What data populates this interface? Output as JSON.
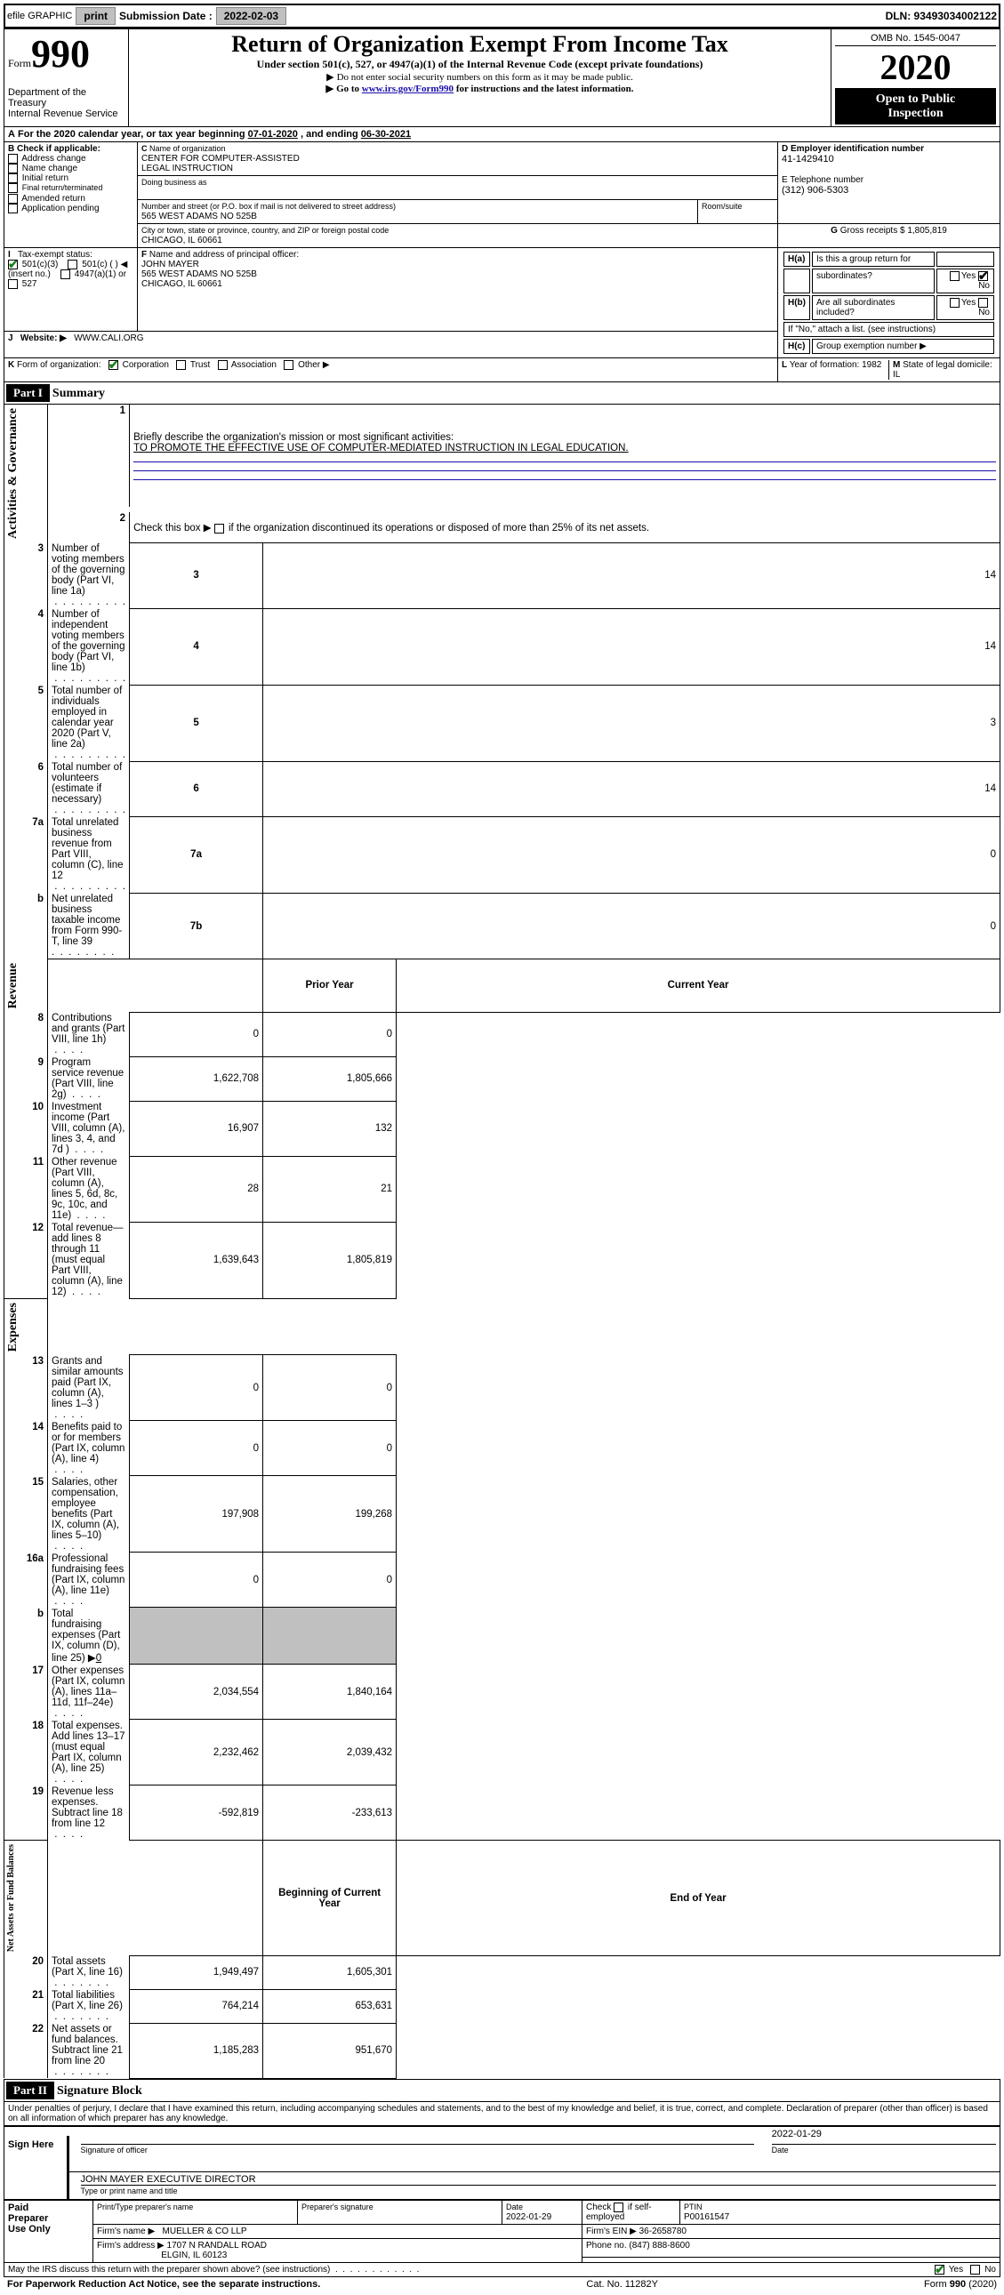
{
  "topbar": {
    "efile": "efile GRAPHIC",
    "print": "print",
    "sub_label": "Submission Date :",
    "sub_date": "2022-02-03",
    "dln": "DLN: 93493034002122"
  },
  "header": {
    "form_word": "Form",
    "form_no": "990",
    "title": "Return of Organization Exempt From Income Tax",
    "subtitle": "Under section 501(c), 527, or 4947(a)(1) of the Internal Revenue Code (except private foundations)",
    "note1": "Do not enter social security numbers on this form as it may be made public.",
    "note2a": "Go to ",
    "note2_link": "www.irs.gov/Form990",
    "note2b": " for instructions and the latest information.",
    "omb": "OMB No. 1545-0047",
    "year": "2020",
    "public1": "Open to Public",
    "public2": "Inspection",
    "dept1": "Department of the Treasury",
    "dept2": "Internal Revenue Service"
  },
  "sectA": {
    "text_a": "A",
    "text": "For the 2020 calendar year, or tax year beginning ",
    "begin": "07-01-2020",
    "mid": " , and ending ",
    "end": "06-30-2021"
  },
  "boxB": {
    "label": "B",
    "check_if": "Check if applicable:",
    "items": [
      "Address change",
      "Name change",
      "Initial return",
      "Final return/terminated",
      "Amended return",
      "Application pending"
    ],
    "pending": "Application"
  },
  "boxC": {
    "label": "C",
    "name_label": "Name of organization",
    "name1": "CENTER FOR COMPUTER-ASSISTED",
    "name2": "LEGAL INSTRUCTION",
    "dba_label": "Doing business as",
    "dba": "",
    "street_label": "Number and street (or P.O. box if mail is not delivered to street address)",
    "room_label": "Room/suite",
    "street": "565 WEST ADAMS NO 525B",
    "city_label": "City or town, state or province, country, and ZIP or foreign postal code",
    "city": "CHICAGO, IL  60661"
  },
  "boxD": {
    "label": "D Employer identification number",
    "ein": "41-1429410"
  },
  "boxE": {
    "label": "E Telephone number",
    "phone": "(312) 906-5303"
  },
  "boxG": {
    "label": "G",
    "text": "Gross receipts $",
    "val": "1,805,819"
  },
  "boxF": {
    "label": "F",
    "text": "Name and address of principal officer:",
    "name": "JOHN MAYER",
    "addr1": "565 WEST ADAMS NO 525B",
    "addr2": "CHICAGO, IL  60661"
  },
  "boxH": {
    "a_label": "H(a)",
    "a_text": "Is this a group return for",
    "a_text2": "subordinates?",
    "b_label": "H(b)",
    "b_text": "Are all subordinates included?",
    "b_note": "If \"No,\" attach a list. (see instructions)",
    "c_label": "H(c)",
    "c_text": "Group exemption number ▶",
    "yes": "Yes",
    "no": "No"
  },
  "boxI": {
    "label": "I",
    "text": "Tax-exempt status:",
    "o501c3": "501(c)(3)",
    "o501c": "501(c) (   ) ◀ (insert no.)",
    "o4947": "4947(a)(1) or",
    "o527": "527"
  },
  "boxJ": {
    "label": "J",
    "text": "Website: ▶",
    "url": "WWW.CALI.ORG"
  },
  "boxK": {
    "label": "K",
    "text": "Form of organization:",
    "corp": "Corporation",
    "trust": "Trust",
    "assoc": "Association",
    "other": "Other ▶"
  },
  "boxL": {
    "label": "L",
    "text": "Year of formation:",
    "val": "1982"
  },
  "boxM": {
    "label": "M",
    "text": "State of legal domicile:",
    "val": "IL"
  },
  "part1": {
    "hdr": "Part I",
    "title": "Summary",
    "line1_label": "1",
    "line1": "Briefly describe the organization's mission or most significant activities:",
    "line1_val": "TO PROMOTE THE EFFECTIVE USE OF COMPUTER-MEDIATED INSTRUCTION IN LEGAL EDUCATION.",
    "line2_label": "2",
    "line2": "Check this box ▶",
    "line2b": "if the organization discontinued its operations or disposed of more than 25% of its net assets.",
    "rows_ag": [
      {
        "n": "3",
        "t": "Number of voting members of the governing body (Part VI, line 1a)",
        "k": "3",
        "v": "14"
      },
      {
        "n": "4",
        "t": "Number of independent voting members of the governing body (Part VI, line 1b)",
        "k": "4",
        "v": "14"
      },
      {
        "n": "5",
        "t": "Total number of individuals employed in calendar year 2020 (Part V, line 2a)",
        "k": "5",
        "v": "3"
      },
      {
        "n": "6",
        "t": "Total number of volunteers (estimate if necessary)",
        "k": "6",
        "v": "14"
      },
      {
        "n": "7a",
        "t": "Total unrelated business revenue from Part VIII, column (C), line 12",
        "k": "7a",
        "v": "0"
      },
      {
        "n": "b",
        "t": "Net unrelated business taxable income from Form 990-T, line 39",
        "k": "7b",
        "v": "0"
      }
    ],
    "col_prior": "Prior Year",
    "col_curr": "Current Year",
    "rows_rev": [
      {
        "n": "8",
        "t": "Contributions and grants (Part VIII, line 1h)",
        "p": "0",
        "c": "0"
      },
      {
        "n": "9",
        "t": "Program service revenue (Part VIII, line 2g)",
        "p": "1,622,708",
        "c": "1,805,666"
      },
      {
        "n": "10",
        "t": "Investment income (Part VIII, column (A), lines 3, 4, and 7d )",
        "p": "16,907",
        "c": "132"
      },
      {
        "n": "11",
        "t": "Other revenue (Part VIII, column (A), lines 5, 6d, 8c, 9c, 10c, and 11e)",
        "p": "28",
        "c": "21"
      },
      {
        "n": "12",
        "t": "Total revenue—add lines 8 through 11 (must equal Part VIII, column (A), line 12)",
        "p": "1,639,643",
        "c": "1,805,819"
      }
    ],
    "rows_exp": [
      {
        "n": "13",
        "t": "Grants and similar amounts paid (Part IX, column (A), lines 1–3 )",
        "p": "0",
        "c": "0"
      },
      {
        "n": "14",
        "t": "Benefits paid to or for members (Part IX, column (A), line 4)",
        "p": "0",
        "c": "0"
      },
      {
        "n": "15",
        "t": "Salaries, other compensation, employee benefits (Part IX, column (A), lines 5–10)",
        "p": "197,908",
        "c": "199,268"
      },
      {
        "n": "16a",
        "t": "Professional fundraising fees (Part IX, column (A), line 11e)",
        "p": "0",
        "c": "0"
      },
      {
        "n": "b",
        "t": "Total fundraising expenses (Part IX, column (D), line 25) ▶",
        "p": "",
        "c": "",
        "sub": "0",
        "gray": true
      },
      {
        "n": "17",
        "t": "Other expenses (Part IX, column (A), lines 11a–11d, 11f–24e)",
        "p": "2,034,554",
        "c": "1,840,164"
      },
      {
        "n": "18",
        "t": "Total expenses. Add lines 13–17 (must equal Part IX, column (A), line 25)",
        "p": "2,232,462",
        "c": "2,039,432"
      },
      {
        "n": "19",
        "t": "Revenue less expenses. Subtract line 18 from line 12",
        "p": "-592,819",
        "c": "-233,613"
      }
    ],
    "col_boy": "Beginning of Current Year",
    "col_eoy": "End of Year",
    "rows_na": [
      {
        "n": "20",
        "t": "Total assets (Part X, line 16)",
        "p": "1,949,497",
        "c": "1,605,301"
      },
      {
        "n": "21",
        "t": "Total liabilities (Part X, line 26)",
        "p": "764,214",
        "c": "653,631"
      },
      {
        "n": "22",
        "t": "Net assets or fund balances. Subtract line 21 from line 20",
        "p": "1,185,283",
        "c": "951,670"
      }
    ],
    "side_ag": "Activities & Governance",
    "side_rev": "Revenue",
    "side_exp": "Expenses",
    "side_na1": "Net Assets or",
    "side_na2": "Fund Balances"
  },
  "part2": {
    "hdr": "Part II",
    "title": "Signature Block",
    "decl": "Under penalties of perjury, I declare that I have examined this return, including accompanying schedules and statements, and to the best of my knowledge and belief, it is true, correct, and complete. Declaration of preparer (other than officer) is based on all information of which preparer has any knowledge."
  },
  "sign": {
    "side": "Sign Here",
    "sig_label": "Signature of officer",
    "date_label": "Date",
    "date": "2022-01-29",
    "name": "JOHN MAYER EXECUTIVE DIRECTOR",
    "name_label": "Type or print name and title"
  },
  "paid": {
    "side1": "Paid",
    "side2": "Preparer",
    "side3": "Use Only",
    "h1": "Print/Type preparer's name",
    "h2": "Preparer's signature",
    "h3": "Date",
    "date": "2022-01-29",
    "h4": "Check",
    "h4b": "if self-employed",
    "ptin_label": "PTIN",
    "ptin": "P00161547",
    "firm_name_label": "Firm's name    ▶",
    "firm_name": "MUELLER & CO LLP",
    "firm_ein_label": "Firm's EIN ▶",
    "firm_ein": "36-2658780",
    "firm_addr_label": "Firm's address ▶",
    "firm_addr1": "1707 N RANDALL ROAD",
    "firm_addr2": "ELGIN, IL  60123",
    "phone_label": "Phone no.",
    "phone": "(847) 888-8600",
    "discuss": "May the IRS discuss this return with the preparer shown above? (see instructions)",
    "yes": "Yes",
    "no": "No"
  },
  "footer": {
    "left": "For Paperwork Reduction Act Notice, see the separate instructions.",
    "mid": "Cat. No. 11282Y",
    "right": "Form 990 (2020)",
    "right_bold": "990"
  }
}
